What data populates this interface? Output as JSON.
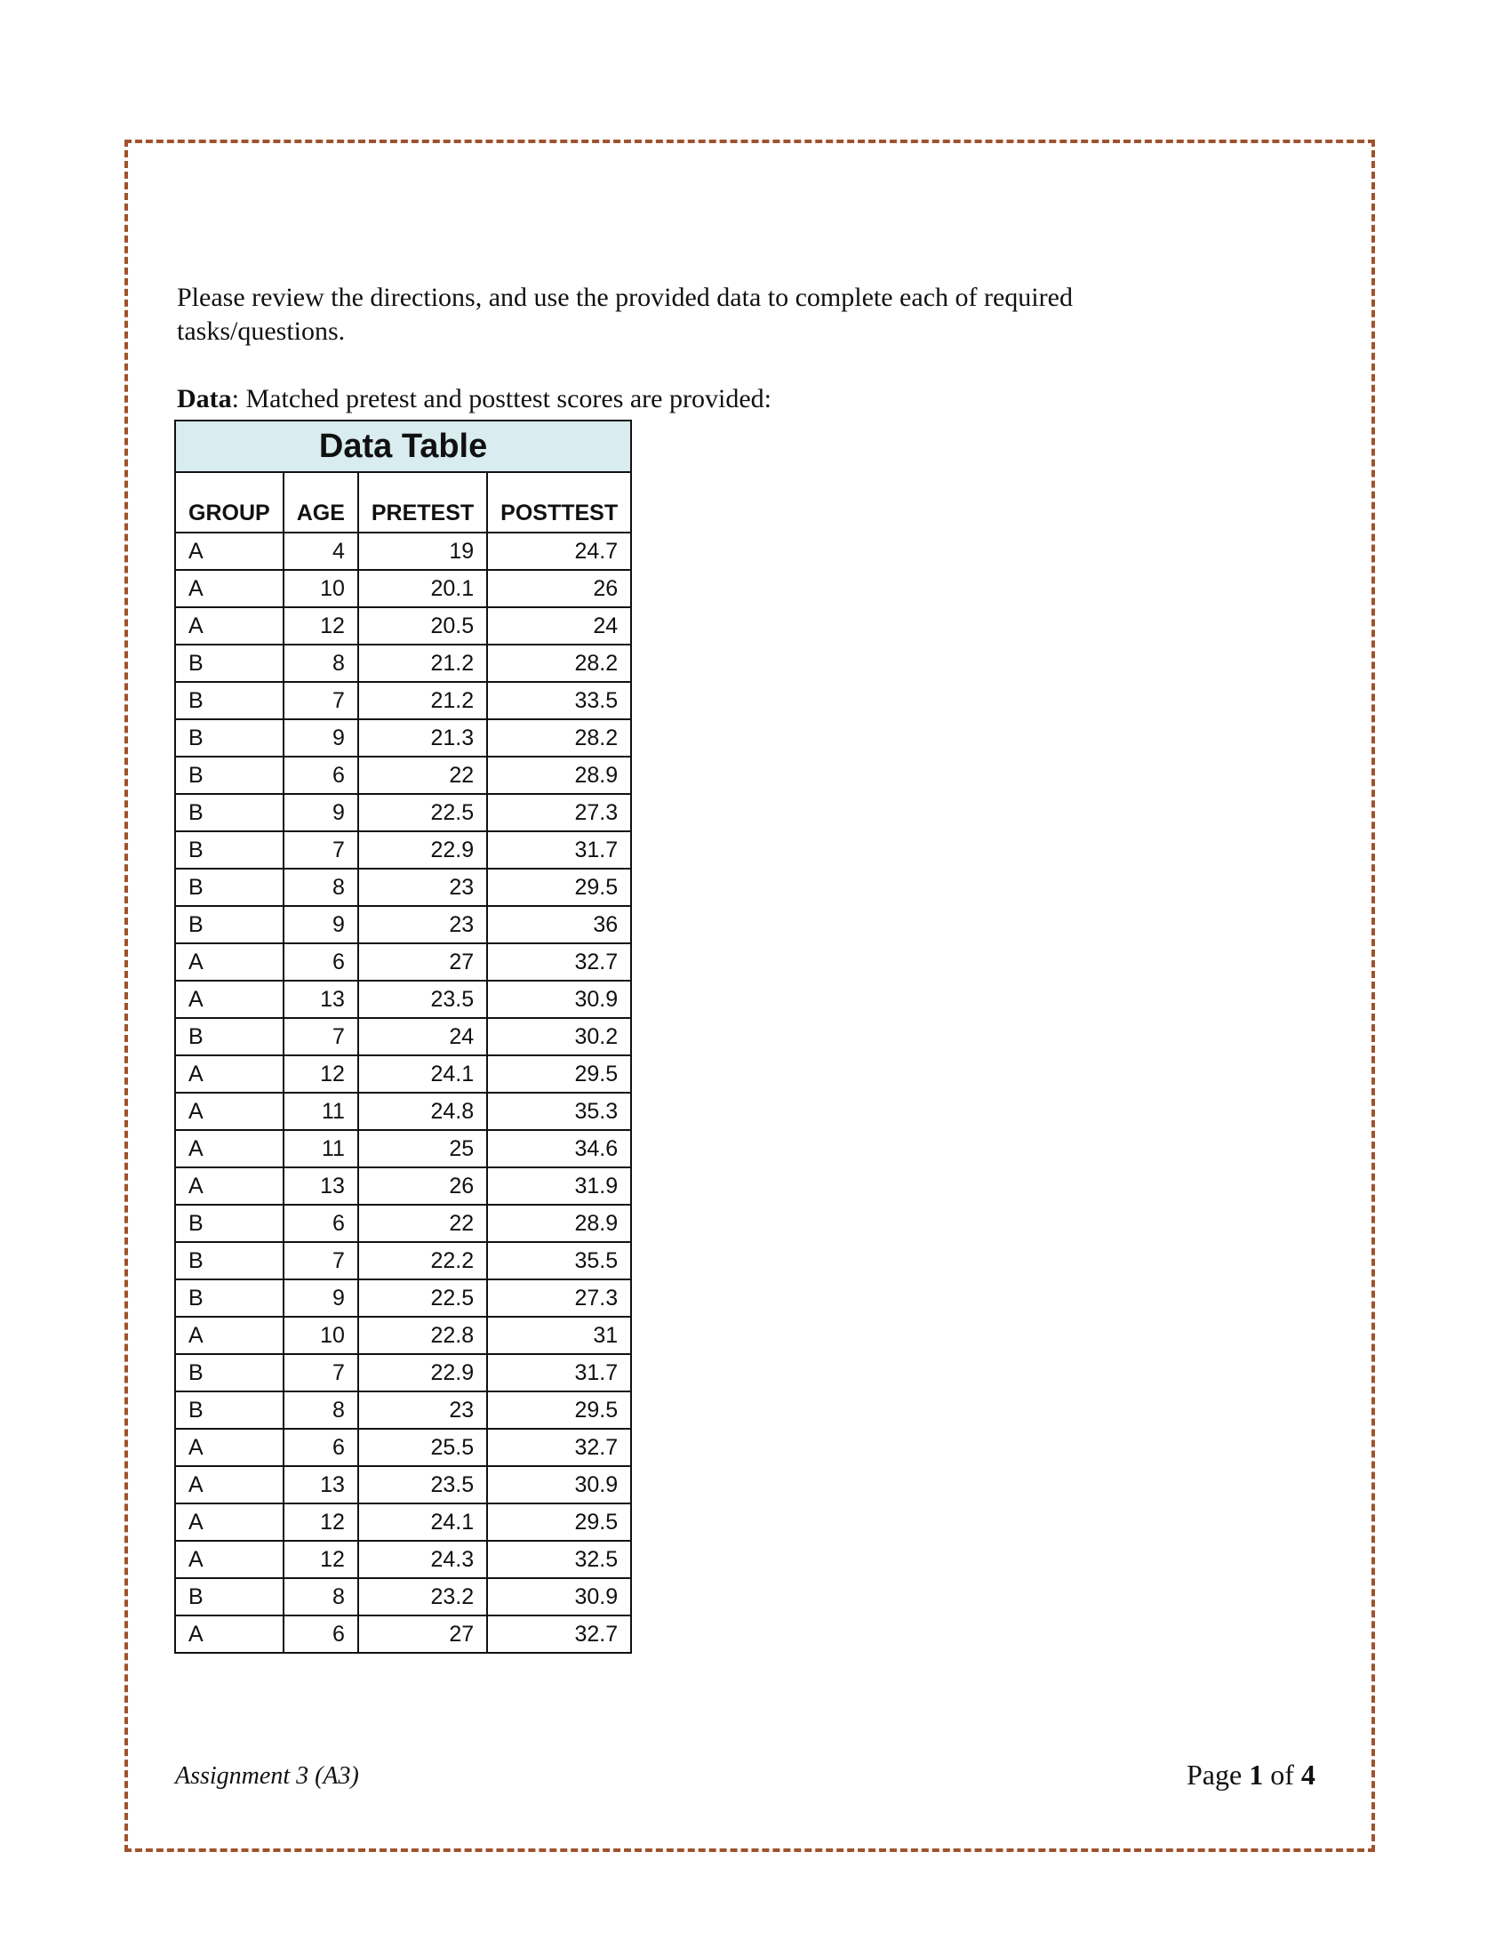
{
  "intro": "Please review the directions, and use the provided data to complete each of required tasks/questions.",
  "data_label_bold": "Data",
  "data_label_rest": ": Matched pretest and posttest scores are provided:",
  "table": {
    "title": "Data Table",
    "headers": [
      "GROUP",
      "AGE",
      "PRETEST",
      "POSTTEST"
    ],
    "rows": [
      [
        "A",
        "4",
        "19",
        "24.7"
      ],
      [
        "A",
        "10",
        "20.1",
        "26"
      ],
      [
        "A",
        "12",
        "20.5",
        "24"
      ],
      [
        "B",
        "8",
        "21.2",
        "28.2"
      ],
      [
        "B",
        "7",
        "21.2",
        "33.5"
      ],
      [
        "B",
        "9",
        "21.3",
        "28.2"
      ],
      [
        "B",
        "6",
        "22",
        "28.9"
      ],
      [
        "B",
        "9",
        "22.5",
        "27.3"
      ],
      [
        "B",
        "7",
        "22.9",
        "31.7"
      ],
      [
        "B",
        "8",
        "23",
        "29.5"
      ],
      [
        "B",
        "9",
        "23",
        "36"
      ],
      [
        "A",
        "6",
        "27",
        "32.7"
      ],
      [
        "A",
        "13",
        "23.5",
        "30.9"
      ],
      [
        "B",
        "7",
        "24",
        "30.2"
      ],
      [
        "A",
        "12",
        "24.1",
        "29.5"
      ],
      [
        "A",
        "11",
        "24.8",
        "35.3"
      ],
      [
        "A",
        "11",
        "25",
        "34.6"
      ],
      [
        "A",
        "13",
        "26",
        "31.9"
      ],
      [
        "B",
        "6",
        "22",
        "28.9"
      ],
      [
        "B",
        "7",
        "22.2",
        "35.5"
      ],
      [
        "B",
        "9",
        "22.5",
        "27.3"
      ],
      [
        "A",
        "10",
        "22.8",
        "31"
      ],
      [
        "B",
        "7",
        "22.9",
        "31.7"
      ],
      [
        "B",
        "8",
        "23",
        "29.5"
      ],
      [
        "A",
        "6",
        "25.5",
        "32.7"
      ],
      [
        "A",
        "13",
        "23.5",
        "30.9"
      ],
      [
        "A",
        "12",
        "24.1",
        "29.5"
      ],
      [
        "A",
        "12",
        "24.3",
        "32.5"
      ],
      [
        "B",
        "8",
        "23.2",
        "30.9"
      ],
      [
        "A",
        "6",
        "27",
        "32.7"
      ]
    ]
  },
  "footer": {
    "left": "Assignment 3 (A3)",
    "page_word": "Page",
    "page_current": "1",
    "of_word": "of",
    "page_total": "4"
  },
  "colors": {
    "border": "#a0522d",
    "table_title_bg": "#d9ecf0"
  }
}
